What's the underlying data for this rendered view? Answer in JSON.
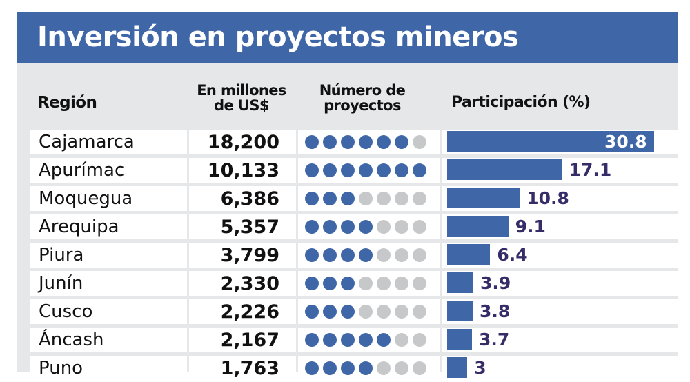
{
  "header": {
    "title": "Inversión en proyectos mineros"
  },
  "columns": {
    "region": "Región",
    "millones_line1": "En millones",
    "millones_line2": "de US$",
    "numero_line1": "Número de",
    "numero_line2": "proyectos",
    "participacion": "Participación (%)"
  },
  "colors": {
    "accent": "#3f67a8",
    "dot_empty": "#c7c8ca",
    "label": "#352c68",
    "panel": "#e6e7e9"
  },
  "chart_data": {
    "type": "table",
    "title": "Inversión en proyectos mineros",
    "columns": [
      "Región",
      "En millones de US$",
      "Número de proyectos",
      "Participación (%)"
    ],
    "dots_total": 7,
    "rows": [
      {
        "region": "Cajamarca",
        "value": "18,200",
        "projects": 6,
        "share": 30.8,
        "share_label": "30.8"
      },
      {
        "region": "Apurímac",
        "value": "10,133",
        "projects": 7,
        "share": 17.1,
        "share_label": "17.1"
      },
      {
        "region": "Moquegua",
        "value": "6,386",
        "projects": 3,
        "share": 10.8,
        "share_label": "10.8"
      },
      {
        "region": "Arequipa",
        "value": "5,357",
        "projects": 4,
        "share": 9.1,
        "share_label": "9.1"
      },
      {
        "region": "Piura",
        "value": "3,799",
        "projects": 4,
        "share": 6.4,
        "share_label": "6.4"
      },
      {
        "region": "Junín",
        "value": "2,330",
        "projects": 3,
        "share": 3.9,
        "share_label": "3.9"
      },
      {
        "region": "Cusco",
        "value": "2,226",
        "projects": 3,
        "share": 3.8,
        "share_label": "3.8"
      },
      {
        "region": "Áncash",
        "value": "2,167",
        "projects": 5,
        "share": 3.7,
        "share_label": "3.7"
      },
      {
        "region": "Puno",
        "value": "1,763",
        "projects": 4,
        "share": 3,
        "share_label": "3"
      }
    ]
  }
}
